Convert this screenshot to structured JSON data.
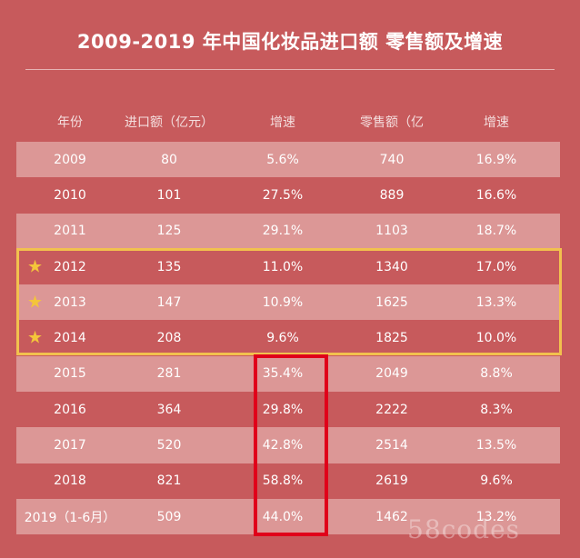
{
  "title": "2009-2019 年中国化妆品进口额 零售额及增速",
  "headers": [
    "年份",
    "进口额（亿元）",
    "增速",
    "零售额（亿元）",
    "增速"
  ],
  "rows": [
    {
      "year": "2009",
      "import": "80",
      "import_growth": "5.6%",
      "retail": "740",
      "retail_growth": "16.9%",
      "starred": false
    },
    {
      "year": "2010",
      "import": "101",
      "import_growth": "27.5%",
      "retail": "889",
      "retail_growth": "16.6%",
      "starred": false
    },
    {
      "year": "2011",
      "import": "125",
      "import_growth": "29.1%",
      "retail": "1103",
      "retail_growth": "18.7%",
      "starred": false
    },
    {
      "year": "2012",
      "import": "135",
      "import_growth": "11.0%",
      "retail": "1340",
      "retail_growth": "17.0%",
      "starred": true
    },
    {
      "year": "2013",
      "import": "147",
      "import_growth": "10.9%",
      "retail": "1625",
      "retail_growth": "13.3%",
      "starred": true
    },
    {
      "year": "2014",
      "import": "208",
      "import_growth": "9.6%",
      "retail": "1825",
      "retail_growth": "10.0%",
      "starred": true
    },
    {
      "year": "2015",
      "import": "281",
      "import_growth": "35.4%",
      "retail": "2049",
      "retail_growth": "8.8%",
      "starred": false
    },
    {
      "year": "2016",
      "import": "364",
      "import_growth": "29.8%",
      "retail": "2222",
      "retail_growth": "8.3%",
      "starred": false
    },
    {
      "year": "2017",
      "import": "520",
      "import_growth": "42.8%",
      "retail": "2514",
      "retail_growth": "13.5%",
      "starred": false
    },
    {
      "year": "2018",
      "import": "821",
      "import_growth": "58.8%",
      "retail": "2619",
      "retail_growth": "9.6%",
      "starred": false
    },
    {
      "year": "2019（1-6月）",
      "import": "509",
      "import_growth": "44.0%",
      "retail": "1462",
      "retail_growth": "13.2%",
      "starred": false
    }
  ],
  "star_icon": "★",
  "watermark": "58codes",
  "colors": {
    "background": "#c75a5c",
    "stripe": "#dc9796",
    "highlight_yellow": "#f2c14e",
    "highlight_red": "#e0001a",
    "star": "#f4c53a"
  }
}
